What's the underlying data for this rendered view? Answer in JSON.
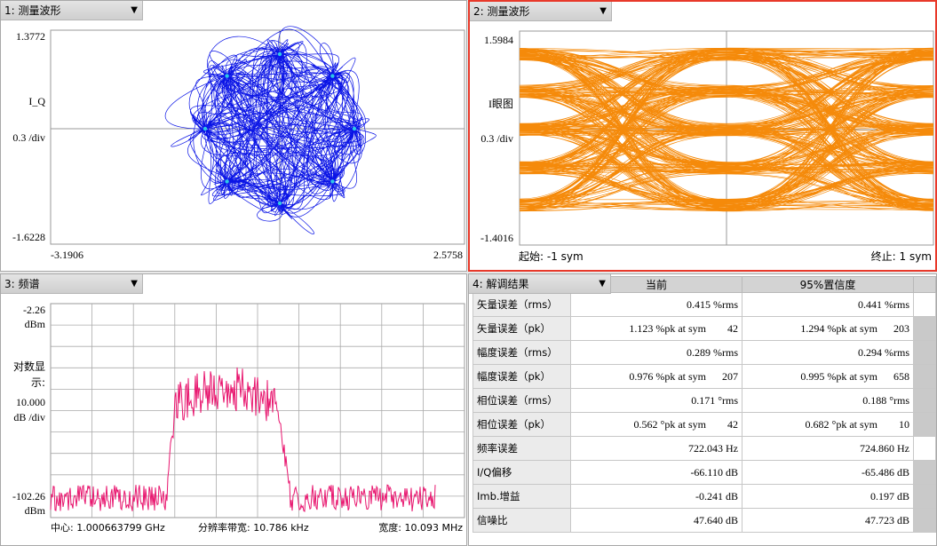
{
  "panes": {
    "iq": {
      "title": "1: 测量波形",
      "ymax": "1.3772",
      "ymid_name": "I_Q",
      "yscale": "0.3 /div",
      "ymin": "-1.6228",
      "xmin": "-3.1906",
      "xmax": "2.5758",
      "trace_color": "#0a14e6",
      "point_color": "#2ec8e6"
    },
    "eye": {
      "title": "2: 测量波形",
      "ymax": "1.5984",
      "ymid_name": "I眼图",
      "yscale": "0.3 /div",
      "ymin": "-1.4016",
      "start_label": "起始: -1 sym",
      "stop_label": "终止: 1 sym",
      "trace_color": "#f58a0a"
    },
    "spectrum": {
      "title": "3: 频谱",
      "ymax": "-2.26",
      "ymax_unit": "dBm",
      "ymid_name_1": "对数显",
      "ymid_name_2": "示:",
      "yscale_1": "10.000",
      "yscale_2": "dB /div",
      "ymin": "-102.26",
      "ymin_unit": "dBm",
      "center": "中心:  1.000663799 GHz",
      "rbw": "分辨率带宽:  10.786 kHz",
      "span": "宽度: 10.093 MHz",
      "trace_color": "#e8156e"
    },
    "results": {
      "title": "4: 解调结果",
      "col_current": "当前",
      "col_conf": "95%置信度",
      "rows": [
        {
          "name": "矢量误差（rms）",
          "cur": "0.415 %rms",
          "conf": "0.441 %rms",
          "sb": "w"
        },
        {
          "name": "矢量误差（pk）",
          "cur": "1.123 %pk at sym",
          "cur_n": "42",
          "conf": "1.294 %pk at sym",
          "conf_n": "203",
          "sb": "g"
        },
        {
          "name": "幅度误差（rms）",
          "cur": "0.289 %rms",
          "conf": "0.294 %rms",
          "sb": "g"
        },
        {
          "name": "幅度误差（pk）",
          "cur": "0.976 %pk at sym",
          "cur_n": "207",
          "conf": "0.995 %pk at sym",
          "conf_n": "658",
          "sb": "g"
        },
        {
          "name": "相位误差（rms）",
          "cur": "0.171 °rms",
          "conf": "0.188 °rms",
          "sb": "g"
        },
        {
          "name": "相位误差（pk）",
          "cur": "0.562 °pk at sym",
          "cur_n": "42",
          "conf": "0.682 °pk at sym",
          "conf_n": "10",
          "sb": "g"
        },
        {
          "name": "频率误差",
          "cur": "722.043 Hz",
          "conf": "724.860 Hz",
          "sb": "w"
        },
        {
          "name": "I/Q偏移",
          "cur": "-66.110 dB",
          "conf": "-65.486 dB",
          "sb": "g"
        },
        {
          "name": "Imb.增益",
          "cur": "-0.241 dB",
          "conf": "0.197 dB",
          "sb": "g"
        },
        {
          "name": "信噪比",
          "cur": "47.640 dB",
          "conf": "47.723 dB",
          "sb": "g"
        }
      ]
    }
  }
}
